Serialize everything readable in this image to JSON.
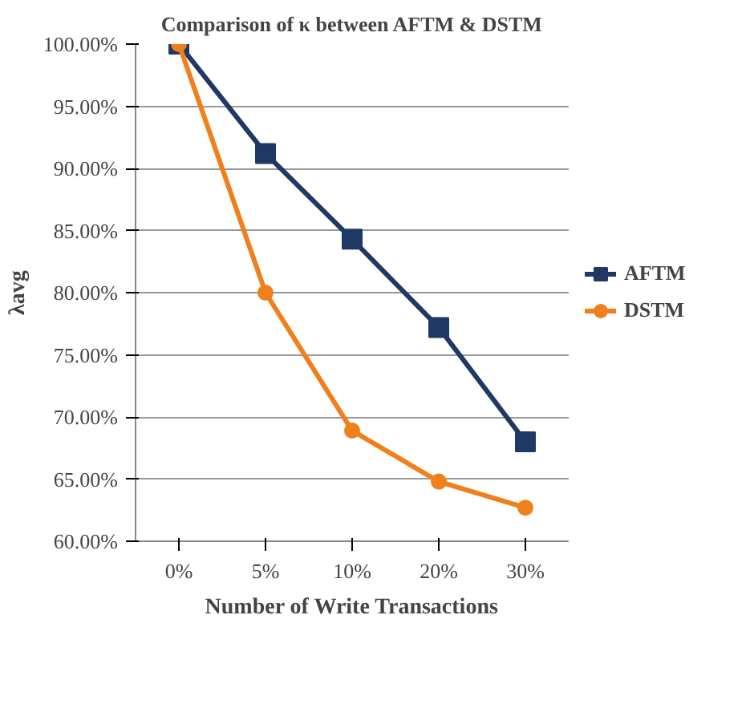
{
  "chart_data": {
    "type": "line",
    "title": "Comparison of κ between AFTM & DSTM",
    "xlabel": "Number of Write Transactions",
    "ylabel": "λavg",
    "categories": [
      "0%",
      "5%",
      "10%",
      "20%",
      "30%"
    ],
    "series": [
      {
        "name": "AFTM",
        "color": "#1f3864",
        "marker": "square",
        "values": [
          100,
          91.2,
          84.3,
          77.2,
          68.0
        ]
      },
      {
        "name": "DSTM",
        "color": "#f07f1c",
        "marker": "circle",
        "values": [
          100,
          80.0,
          68.9,
          64.8,
          62.7
        ]
      }
    ],
    "ylim": [
      60,
      100
    ],
    "yticks": [
      {
        "value": 60,
        "label": "60.00%"
      },
      {
        "value": 65,
        "label": "65.00%"
      },
      {
        "value": 70,
        "label": "70.00%"
      },
      {
        "value": 75,
        "label": "75.00%"
      },
      {
        "value": 80,
        "label": "80.00%"
      },
      {
        "value": 85,
        "label": "85.00%"
      },
      {
        "value": 90,
        "label": "90.00%"
      },
      {
        "value": 95,
        "label": "95.00%"
      },
      {
        "value": 100,
        "label": "100.00%"
      }
    ],
    "grid": "y",
    "legend": "right",
    "line_style": "solid"
  }
}
